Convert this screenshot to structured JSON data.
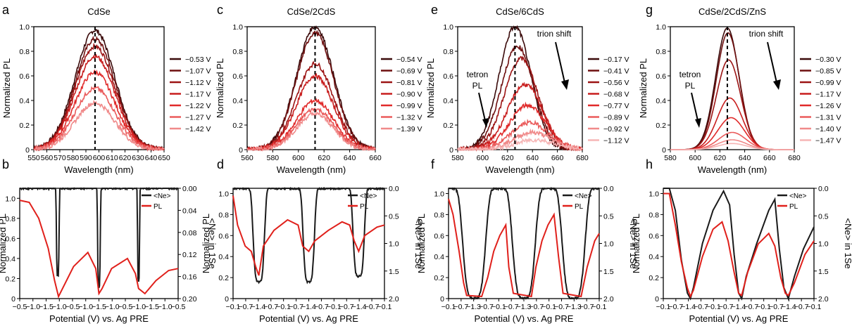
{
  "colors": {
    "axis": "#000000",
    "ne_line": "#1a1a1a",
    "pl_line": "#e0201b",
    "legend_shades": [
      "#3a0a0a",
      "#6e0f0f",
      "#9c1414",
      "#c81d1d",
      "#e02a2a",
      "#ea5a5a",
      "#f08a8a",
      "#f6b5b5"
    ]
  },
  "chart_data": [
    {
      "panel": "a",
      "type": "line",
      "title": "CdSe",
      "xlabel": "Wavelength (nm)",
      "ylabel": "Normalized PL",
      "xlim": [
        550,
        650
      ],
      "ylim": [
        0,
        1.0
      ],
      "xticks": [
        "550",
        "560",
        "570",
        "580",
        "590",
        "600",
        "610",
        "620",
        "630",
        "640",
        "650"
      ],
      "yticks": [
        "0",
        "0.2",
        "0.4",
        "0.6",
        "0.8",
        "1.0"
      ],
      "center": 597,
      "fwhm": 36,
      "noisy": true,
      "series": [
        {
          "name": "−0.53 V",
          "amplitude": 0.97
        },
        {
          "name": "−1.07 V",
          "amplitude": 0.9
        },
        {
          "name": "−1.12 V",
          "amplitude": 0.84
        },
        {
          "name": "−1.17 V",
          "amplitude": 0.76
        },
        {
          "name": "−1.22 V",
          "amplitude": 0.63
        },
        {
          "name": "−1.27 V",
          "amplitude": 0.5
        },
        {
          "name": "−1.42 V",
          "amplitude": 0.38
        }
      ]
    },
    {
      "panel": "c",
      "type": "line",
      "title": "CdSe/2CdS",
      "xlabel": "Wavelength (nm)",
      "ylabel": "Normalized PL",
      "xlim": [
        560,
        660
      ],
      "ylim": [
        0,
        1.0
      ],
      "xticks": [
        "560",
        "580",
        "600",
        "620",
        "640",
        "660"
      ],
      "yticks": [
        "0",
        "0.2",
        "0.4",
        "0.6",
        "0.8",
        "1.0"
      ],
      "center": 613,
      "fwhm": 34,
      "noisy": true,
      "series": [
        {
          "name": "−0.54 V",
          "amplitude": 1.0
        },
        {
          "name": "−0.69 V",
          "amplitude": 0.95
        },
        {
          "name": "−0.81 V",
          "amplitude": 0.7
        },
        {
          "name": "−0.90 V",
          "amplitude": 0.6
        },
        {
          "name": "−0.99 V",
          "amplitude": 0.4
        },
        {
          "name": "−1.32 V",
          "amplitude": 0.33
        },
        {
          "name": "−1.39 V",
          "amplitude": 0.29
        }
      ]
    },
    {
      "panel": "e",
      "type": "line",
      "title": "CdSe/6CdS",
      "xlabel": "Wavelength (nm)",
      "ylabel": "Normalized PL",
      "xlim": [
        580,
        680
      ],
      "ylim": [
        0,
        1.0
      ],
      "xticks": [
        "580",
        "600",
        "620",
        "640",
        "660",
        "680"
      ],
      "yticks": [
        "0",
        "0.2",
        "0.4",
        "0.6",
        "0.8",
        "1.0"
      ],
      "noisy": true,
      "annotations": [
        "tetron\nPL",
        "trion shift"
      ],
      "series": [
        {
          "name": "−0.17 V",
          "amplitude": 1.0,
          "center": 626,
          "fwhm": 30
        },
        {
          "name": "−0.41 V",
          "amplitude": 0.84,
          "center": 628,
          "fwhm": 31
        },
        {
          "name": "−0.56 V",
          "amplitude": 0.74,
          "center": 631,
          "fwhm": 32
        },
        {
          "name": "−0.68 V",
          "amplitude": 0.53,
          "center": 634,
          "fwhm": 33
        },
        {
          "name": "−0.77 V",
          "amplitude": 0.36,
          "center": 636,
          "fwhm": 34
        },
        {
          "name": "−0.89 V",
          "amplitude": 0.22,
          "center": 638,
          "fwhm": 35
        },
        {
          "name": "−0.92 V",
          "amplitude": 0.14,
          "center": 640,
          "fwhm": 36
        },
        {
          "name": "−1.12 V",
          "amplitude": 0.08,
          "center": 642,
          "fwhm": 37
        }
      ]
    },
    {
      "panel": "g",
      "type": "line",
      "title": "CdSe/2CdS/ZnS",
      "xlabel": "Wavelength (nm)",
      "ylabel": "Normalized PL",
      "xlim": [
        580,
        680
      ],
      "ylim": [
        0,
        1.0
      ],
      "xticks": [
        "580",
        "600",
        "620",
        "640",
        "660",
        "680"
      ],
      "yticks": [
        "0",
        "0.2",
        "0.4",
        "0.6",
        "0.8",
        "1.0"
      ],
      "noisy": false,
      "annotations": [
        "tetron\nPL",
        "trion shift"
      ],
      "series": [
        {
          "name": "−0.30 V",
          "amplitude": 0.99,
          "center": 626,
          "fwhm": 22
        },
        {
          "name": "−0.85 V",
          "amplitude": 0.95,
          "center": 626.5,
          "fwhm": 22
        },
        {
          "name": "−0.99 V",
          "amplitude": 0.73,
          "center": 627,
          "fwhm": 23
        },
        {
          "name": "−1.17 V",
          "amplitude": 0.42,
          "center": 628,
          "fwhm": 24
        },
        {
          "name": "−1.26 V",
          "amplitude": 0.26,
          "center": 629,
          "fwhm": 25
        },
        {
          "name": "−1.31 V",
          "amplitude": 0.14,
          "center": 630,
          "fwhm": 26
        },
        {
          "name": "−1.40 V",
          "amplitude": 0.08,
          "center": 630,
          "fwhm": 27
        },
        {
          "name": "−1.47 V",
          "amplitude": 0.05,
          "center": 630,
          "fwhm": 27
        }
      ]
    },
    {
      "panel": "b",
      "type": "line",
      "xlabel": "Potential (V) vs. Ag PRE",
      "ylabel": "Normalized PL",
      "y2label": "<Ne> in 1Se",
      "xlim": [
        0,
        1
      ],
      "ylim": [
        0,
        1.1
      ],
      "y2lim": [
        0.0,
        0.2
      ],
      "xticks": [
        "−0.5",
        "−1.0",
        "−1.5",
        "−1.0",
        "−0.5",
        "−1.0",
        "−1.5",
        "−1.0",
        "−0.5",
        "−1.0",
        "−1.5",
        "−1.0",
        "−0.5"
      ],
      "yticks": [
        "0",
        "0.2",
        "0.4",
        "0.6",
        "0.8",
        "1.0"
      ],
      "y2ticks": [
        "0.00",
        "0.04",
        "0.08",
        "0.12",
        "0.16",
        "0.20"
      ],
      "legend": [
        "<Ne>",
        "PL"
      ],
      "ne_dips": [
        {
          "x": 0.24,
          "depth": 0.16,
          "width": 0.008
        },
        {
          "x": 0.5,
          "depth": 0.18,
          "width": 0.008
        },
        {
          "x": 0.75,
          "depth": 0.17,
          "width": 0.006
        }
      ],
      "pl_points": [
        [
          0.0,
          0.98
        ],
        [
          0.06,
          0.96
        ],
        [
          0.12,
          0.8
        ],
        [
          0.18,
          0.5
        ],
        [
          0.22,
          0.18
        ],
        [
          0.245,
          0.02
        ],
        [
          0.27,
          0.1
        ],
        [
          0.34,
          0.32
        ],
        [
          0.43,
          0.46
        ],
        [
          0.48,
          0.3
        ],
        [
          0.5,
          0.05
        ],
        [
          0.52,
          0.1
        ],
        [
          0.58,
          0.3
        ],
        [
          0.68,
          0.4
        ],
        [
          0.73,
          0.25
        ],
        [
          0.75,
          0.1
        ],
        [
          0.79,
          0.05
        ],
        [
          0.86,
          0.18
        ],
        [
          0.94,
          0.28
        ],
        [
          1.0,
          0.3
        ]
      ]
    },
    {
      "panel": "d",
      "type": "line",
      "xlabel": "Potential (V) vs. Ag PRE",
      "ylabel": "Normalized PL",
      "y2label": "<Ne> in 1Se",
      "xlim": [
        0,
        1
      ],
      "ylim": [
        0,
        1.05
      ],
      "y2lim": [
        0.0,
        2.0
      ],
      "xticks": [
        "−0.1",
        "−0.7",
        "−1.4",
        "−0.7",
        "−0.1",
        "−0.7",
        "−1.4",
        "−0.7",
        "−0.1",
        "−0.7",
        "−1.4",
        "−0.7",
        "−0.1"
      ],
      "yticks": [
        "0",
        "0.2",
        "0.4",
        "0.6",
        "0.8",
        "1.0"
      ],
      "y2ticks": [
        "0.0",
        "0.5",
        "1.0",
        "1.5",
        "2.0"
      ],
      "legend": [
        "<Ne>",
        "PL"
      ],
      "ne_dips": [
        {
          "x": 0.17,
          "depth": 1.7,
          "width": 0.035
        },
        {
          "x": 0.5,
          "depth": 1.7,
          "width": 0.035
        },
        {
          "x": 0.83,
          "depth": 1.6,
          "width": 0.035
        }
      ],
      "pl_points": [
        [
          0.0,
          0.98
        ],
        [
          0.03,
          0.7
        ],
        [
          0.08,
          0.5
        ],
        [
          0.12,
          0.45
        ],
        [
          0.15,
          0.3
        ],
        [
          0.17,
          0.22
        ],
        [
          0.2,
          0.5
        ],
        [
          0.27,
          0.65
        ],
        [
          0.36,
          0.75
        ],
        [
          0.43,
          0.7
        ],
        [
          0.46,
          0.5
        ],
        [
          0.5,
          0.45
        ],
        [
          0.54,
          0.55
        ],
        [
          0.63,
          0.65
        ],
        [
          0.72,
          0.73
        ],
        [
          0.77,
          0.7
        ],
        [
          0.8,
          0.55
        ],
        [
          0.83,
          0.45
        ],
        [
          0.87,
          0.6
        ],
        [
          0.95,
          0.68
        ],
        [
          1.0,
          0.7
        ]
      ]
    },
    {
      "panel": "f",
      "type": "line",
      "xlabel": "Potential (V) vs. Ag PRE",
      "ylabel": "Normalized PL",
      "y2label": "<Ne> in 1Se",
      "xlim": [
        0,
        1
      ],
      "ylim": [
        0,
        1.05
      ],
      "y2lim": [
        0.0,
        2.0
      ],
      "xticks": [
        "−0.1",
        "−0.7",
        "−1.3",
        "−0.7",
        "−0.1",
        "−0.7",
        "−1.3",
        "−0.7",
        "−0.1",
        "−0.7",
        "−1.3",
        "−0.7",
        "−0.1"
      ],
      "yticks": [
        "0",
        "0.2",
        "0.4",
        "0.6",
        "0.8",
        "1.0"
      ],
      "y2ticks": [
        "0.0",
        "0.5",
        "1.0",
        "1.5",
        "2.0"
      ],
      "legend": [
        "<Ne>",
        "PL"
      ],
      "ne_dips": [
        {
          "x": 0.17,
          "depth": 2.0,
          "width": 0.07
        },
        {
          "x": 0.5,
          "depth": 2.0,
          "width": 0.07
        },
        {
          "x": 0.83,
          "depth": 2.0,
          "width": 0.07
        }
      ],
      "pl_points": [
        [
          0.0,
          0.95
        ],
        [
          0.03,
          0.8
        ],
        [
          0.07,
          0.45
        ],
        [
          0.1,
          0.15
        ],
        [
          0.12,
          0.03
        ],
        [
          0.22,
          0.02
        ],
        [
          0.26,
          0.2
        ],
        [
          0.3,
          0.45
        ],
        [
          0.34,
          0.6
        ],
        [
          0.38,
          0.7
        ],
        [
          0.4,
          0.3
        ],
        [
          0.43,
          0.05
        ],
        [
          0.55,
          0.02
        ],
        [
          0.58,
          0.3
        ],
        [
          0.62,
          0.55
        ],
        [
          0.66,
          0.7
        ],
        [
          0.7,
          0.8
        ],
        [
          0.73,
          0.4
        ],
        [
          0.76,
          0.05
        ],
        [
          0.88,
          0.02
        ],
        [
          0.92,
          0.3
        ],
        [
          0.97,
          0.55
        ],
        [
          1.0,
          0.62
        ]
      ]
    },
    {
      "panel": "h",
      "type": "line",
      "xlabel": "Potential (V) vs. Ag PRE",
      "ylabel": "Normalized PL",
      "y2label": "<Ne> in 1Se",
      "xlim": [
        0,
        1
      ],
      "ylim": [
        0,
        1.05
      ],
      "y2lim": [
        0.0,
        2.0
      ],
      "xticks": [
        "−0.1",
        "−0.7",
        "−1.4",
        "−0.7",
        "−0.1",
        "−0.7",
        "−1.4",
        "−0.7",
        "−0.1",
        "−0.7",
        "−1.4",
        "−0.7",
        "−0.1"
      ],
      "yticks": [
        "0",
        "0.2",
        "0.4",
        "0.6",
        "0.8",
        "1.0"
      ],
      "y2ticks": [
        "0.0",
        "0.5",
        "1.0",
        "1.5",
        "2.0"
      ],
      "legend": [
        "<Ne>",
        "PL"
      ],
      "ne_points": [
        [
          0.0,
          0.0
        ],
        [
          0.04,
          0.0
        ],
        [
          0.08,
          0.4
        ],
        [
          0.12,
          1.3
        ],
        [
          0.16,
          1.9
        ],
        [
          0.18,
          2.0
        ],
        [
          0.2,
          1.8
        ],
        [
          0.26,
          1.0
        ],
        [
          0.33,
          0.4
        ],
        [
          0.4,
          0.05
        ],
        [
          0.44,
          0.3
        ],
        [
          0.47,
          1.2
        ],
        [
          0.5,
          1.9
        ],
        [
          0.52,
          2.0
        ],
        [
          0.55,
          1.6
        ],
        [
          0.62,
          1.0
        ],
        [
          0.7,
          0.4
        ],
        [
          0.74,
          0.2
        ],
        [
          0.77,
          1.1
        ],
        [
          0.8,
          1.8
        ],
        [
          0.83,
          2.0
        ],
        [
          0.87,
          1.6
        ],
        [
          0.93,
          1.1
        ],
        [
          1.0,
          0.7
        ]
      ],
      "pl_points": [
        [
          0.0,
          1.0
        ],
        [
          0.04,
          1.0
        ],
        [
          0.08,
          0.7
        ],
        [
          0.12,
          0.35
        ],
        [
          0.16,
          0.1
        ],
        [
          0.18,
          0.02
        ],
        [
          0.2,
          0.08
        ],
        [
          0.26,
          0.4
        ],
        [
          0.33,
          0.66
        ],
        [
          0.39,
          0.73
        ],
        [
          0.43,
          0.55
        ],
        [
          0.47,
          0.25
        ],
        [
          0.5,
          0.05
        ],
        [
          0.52,
          0.03
        ],
        [
          0.56,
          0.25
        ],
        [
          0.63,
          0.52
        ],
        [
          0.7,
          0.62
        ],
        [
          0.74,
          0.5
        ],
        [
          0.78,
          0.2
        ],
        [
          0.81,
          0.05
        ],
        [
          0.83,
          0.03
        ],
        [
          0.87,
          0.15
        ],
        [
          0.94,
          0.42
        ],
        [
          1.0,
          0.55
        ]
      ]
    }
  ]
}
